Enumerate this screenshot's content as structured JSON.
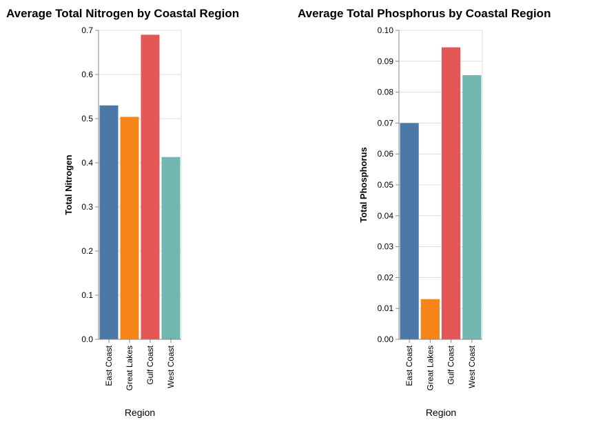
{
  "chart_data": [
    {
      "type": "bar",
      "title": "Average Total Nitrogen by Coastal Region",
      "xlabel": "Region",
      "ylabel": "Total Nitrogen",
      "categories": [
        "East Coast",
        "Great Lakes",
        "Gulf Coast",
        "West Coast"
      ],
      "values": [
        0.53,
        0.504,
        0.69,
        0.413
      ],
      "colors": [
        "#4c78a8",
        "#f58518",
        "#e45756",
        "#72b7b2"
      ],
      "ylim": [
        0,
        0.7
      ],
      "yticks": [
        "0.0",
        "0.1",
        "0.2",
        "0.3",
        "0.4",
        "0.5",
        "0.6",
        "0.7"
      ],
      "grid": true
    },
    {
      "type": "bar",
      "title": "Average Total Phosphorus by Coastal Region",
      "xlabel": "Region",
      "ylabel": "Total Phosphorus",
      "categories": [
        "East Coast",
        "Great Lakes",
        "Gulf Coast",
        "West Coast"
      ],
      "values": [
        0.07,
        0.013,
        0.0945,
        0.0855
      ],
      "colors": [
        "#4c78a8",
        "#f58518",
        "#e45756",
        "#72b7b2"
      ],
      "ylim": [
        0,
        0.1
      ],
      "yticks": [
        "0.00",
        "0.01",
        "0.02",
        "0.03",
        "0.04",
        "0.05",
        "0.06",
        "0.07",
        "0.08",
        "0.09",
        "0.10"
      ],
      "grid": true
    }
  ]
}
